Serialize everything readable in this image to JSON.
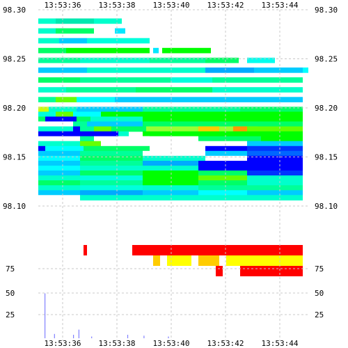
{
  "chart_data": [
    {
      "type": "heatmap",
      "title": "",
      "xlabel": "",
      "ylabel": "",
      "x_ticks": [
        "13:53:36",
        "13:53:38",
        "13:53:40",
        "13:53:42",
        "13:53:44"
      ],
      "y_ticks": [
        "98.30",
        "98.25",
        "98.20",
        "98.15",
        "98.10"
      ],
      "y_tick_values": [
        98.3,
        98.25,
        98.2,
        98.15,
        98.1
      ],
      "ylim": [
        98.0725,
        98.3
      ],
      "grid": true,
      "color_scale": [
        "#0000ff",
        "#00ccff",
        "#00ff99",
        "#00ff00",
        "#ffff00",
        "#ff0000"
      ],
      "note_color_meaning": "depth heat: blue = low size, red = high size",
      "rows": [
        {
          "price": 98.29,
          "cells": [
            [
              0,
              25,
              "#00ffcc"
            ],
            [
              25,
              55,
              "#00e8b0"
            ],
            [
              80,
              40,
              "#00ffcc"
            ]
          ]
        },
        {
          "price": 98.28,
          "cells": [
            [
              0,
              25,
              "#00ffcc"
            ],
            [
              25,
              55,
              "#00ff66"
            ],
            [
              110,
              15,
              "#00e8ff"
            ]
          ]
        },
        {
          "price": 98.27,
          "cells": [
            [
              0,
              30,
              "#00ffcc"
            ],
            [
              30,
              40,
              "#00ccff"
            ],
            [
              70,
              90,
              "#00ffdd"
            ]
          ]
        },
        {
          "price": 98.26,
          "cells": [
            [
              0,
              40,
              "#00ff66"
            ],
            [
              40,
              120,
              "#00ff00"
            ],
            [
              165,
              8,
              "#00e8ff"
            ],
            [
              178,
              70,
              "#00ff00"
            ]
          ]
        },
        {
          "price": 98.25,
          "cells": [
            [
              0,
              60,
              "#00ff99"
            ],
            [
              60,
              100,
              "#00ffcc"
            ],
            [
              160,
              80,
              "#00ff99"
            ],
            [
              240,
              48,
              "#00ff66"
            ],
            [
              300,
              40,
              "#00ffee"
            ]
          ]
        },
        {
          "price": 98.24,
          "cells": [
            [
              0,
              70,
              "#00ccff"
            ],
            [
              70,
              170,
              "#00ffcc"
            ],
            [
              240,
              70,
              "#00aaff"
            ],
            [
              310,
              70,
              "#00ccff"
            ],
            [
              380,
              8,
              "#00ffff"
            ]
          ]
        },
        {
          "price": 98.23,
          "cells": [
            [
              0,
              60,
              "#00ff66"
            ],
            [
              60,
              130,
              "#00ff99"
            ],
            [
              190,
              60,
              "#00ffdd"
            ],
            [
              250,
              130,
              "#00ff99"
            ]
          ]
        },
        {
          "price": 98.22,
          "cells": [
            [
              0,
              40,
              "#00ffcc"
            ],
            [
              40,
              100,
              "#00ff99"
            ],
            [
              140,
              110,
              "#00ff66"
            ],
            [
              250,
              130,
              "#00ffcc"
            ]
          ]
        },
        {
          "price": 98.21,
          "cells": [
            [
              0,
              25,
              "#00ff99"
            ],
            [
              25,
              30,
              "#66ff00"
            ],
            [
              55,
              55,
              "#00ffff"
            ],
            [
              110,
              80,
              "#00ccff"
            ],
            [
              190,
              190,
              "#00ccff"
            ]
          ]
        },
        {
          "price": 98.2,
          "cells": [
            [
              0,
              15,
              "#ccff00"
            ],
            [
              15,
              40,
              "#00ffcc"
            ],
            [
              55,
              95,
              "#00ccff"
            ],
            [
              150,
              140,
              "#00ff99"
            ],
            [
              290,
              90,
              "#00ff66"
            ]
          ]
        },
        {
          "price": 98.195,
          "cells": [
            [
              0,
              25,
              "#00ffdd"
            ],
            [
              25,
              25,
              "#66ff00"
            ],
            [
              50,
              40,
              "#00ffff"
            ],
            [
              90,
              60,
              "#00ff00"
            ],
            [
              150,
              230,
              "#00ff00"
            ]
          ]
        },
        {
          "price": 98.19,
          "cells": [
            [
              0,
              10,
              "#00ff66"
            ],
            [
              10,
              45,
              "#0000ff"
            ],
            [
              55,
              20,
              "#00ff66"
            ],
            [
              75,
              75,
              "#00ffcc"
            ],
            [
              150,
              230,
              "#00ff00"
            ]
          ]
        },
        {
          "price": 98.185,
          "cells": [
            [
              0,
              50,
              "#ffffff"
            ],
            [
              50,
              20,
              "#00ff99"
            ],
            [
              70,
              80,
              "#00ccff"
            ],
            [
              150,
              230,
              "#00ff66"
            ]
          ]
        },
        {
          "price": 98.18,
          "cells": [
            [
              0,
              50,
              "#00ffcc"
            ],
            [
              50,
              10,
              "#0000ff"
            ],
            [
              60,
              20,
              "#00ff99"
            ],
            [
              80,
              25,
              "#66ff00"
            ],
            [
              105,
              50,
              "#00ff66"
            ],
            [
              155,
              160,
              "#99ff33"
            ],
            [
              230,
              30,
              "#ffcc00"
            ],
            [
              280,
              20,
              "#ff9900"
            ],
            [
              300,
              80,
              "#66ff00"
            ]
          ]
        },
        {
          "price": 98.175,
          "cells": [
            [
              0,
              50,
              "#0000ff"
            ],
            [
              50,
              20,
              "#0000ff"
            ],
            [
              70,
              45,
              "#0000ff"
            ],
            [
              115,
              15,
              "#00ffcc"
            ],
            [
              150,
              230,
              "#00ff00"
            ]
          ]
        },
        {
          "price": 98.17,
          "cells": [
            [
              0,
              60,
              "#ffffff"
            ],
            [
              60,
              20,
              "#00ff99"
            ],
            [
              80,
              80,
              "#ffffff"
            ],
            [
              150,
              80,
              "#ffffff"
            ],
            [
              230,
              90,
              "#00ff66"
            ],
            [
              320,
              60,
              "#00ff00"
            ]
          ]
        },
        {
          "price": 98.165,
          "cells": [
            [
              0,
              60,
              "#00ffcc"
            ],
            [
              60,
              30,
              "#66ff00"
            ],
            [
              90,
              70,
              "#ffffff"
            ],
            [
              230,
              70,
              "#ffffff"
            ],
            [
              300,
              80,
              "#00ccff"
            ]
          ]
        },
        {
          "price": 98.16,
          "cells": [
            [
              0,
              10,
              "#0000ff"
            ],
            [
              10,
              55,
              "#00ffff"
            ],
            [
              65,
              95,
              "#00ff66"
            ],
            [
              160,
              70,
              "#ffffff"
            ],
            [
              240,
              60,
              "#0000ff"
            ],
            [
              300,
              80,
              "#0033ff"
            ]
          ]
        },
        {
          "price": 98.155,
          "cells": [
            [
              0,
              60,
              "#00ccff"
            ],
            [
              60,
              90,
              "#00ff99"
            ],
            [
              150,
              90,
              "#ffffff"
            ],
            [
              240,
              60,
              "#00ccff"
            ],
            [
              300,
              80,
              "#0066ff"
            ]
          ]
        },
        {
          "price": 98.15,
          "cells": [
            [
              0,
              60,
              "#00ffff"
            ],
            [
              60,
              90,
              "#00ff66"
            ],
            [
              150,
              90,
              "#00ffcc"
            ],
            [
              240,
              60,
              "#ffffff"
            ],
            [
              300,
              80,
              "#0000ff"
            ]
          ]
        },
        {
          "price": 98.145,
          "cells": [
            [
              0,
              60,
              "#00ccff"
            ],
            [
              60,
              90,
              "#00ff99"
            ],
            [
              150,
              80,
              "#00aaff"
            ],
            [
              230,
              70,
              "#0000ff"
            ],
            [
              300,
              80,
              "#0000ff"
            ]
          ]
        },
        {
          "price": 98.14,
          "cells": [
            [
              0,
              60,
              "#00ffff"
            ],
            [
              60,
              100,
              "#00ffcc"
            ],
            [
              160,
              70,
              "#00ffcc"
            ],
            [
              230,
              150,
              "#0000ff"
            ]
          ]
        },
        {
          "price": 98.135,
          "cells": [
            [
              0,
              60,
              "#00ccff"
            ],
            [
              60,
              90,
              "#00ff66"
            ],
            [
              150,
              80,
              "#00ff00"
            ],
            [
              230,
              70,
              "#00ff66"
            ],
            [
              300,
              80,
              "#0033ff"
            ]
          ]
        },
        {
          "price": 98.13,
          "cells": [
            [
              0,
              60,
              "#00ffcc"
            ],
            [
              60,
              90,
              "#00ffdd"
            ],
            [
              150,
              80,
              "#00ff00"
            ],
            [
              230,
              70,
              "#66ff00"
            ],
            [
              300,
              80,
              "#00ffcc"
            ]
          ]
        },
        {
          "price": 98.125,
          "cells": [
            [
              0,
              60,
              "#00ff66"
            ],
            [
              60,
              90,
              "#00ff99"
            ],
            [
              150,
              80,
              "#00ff00"
            ],
            [
              230,
              70,
              "#00ff66"
            ],
            [
              300,
              80,
              "#00ffcc"
            ]
          ]
        },
        {
          "price": 98.12,
          "cells": [
            [
              0,
              60,
              "#00ffcc"
            ],
            [
              60,
              90,
              "#00ffdd"
            ],
            [
              150,
              80,
              "#00ffcc"
            ],
            [
              230,
              70,
              "#00ff99"
            ],
            [
              300,
              80,
              "#00ff99"
            ]
          ]
        },
        {
          "price": 98.115,
          "cells": [
            [
              0,
              60,
              "#00ccff"
            ],
            [
              60,
              90,
              "#00aaff"
            ],
            [
              150,
              80,
              "#00ccff"
            ],
            [
              230,
              70,
              "#00ffff"
            ],
            [
              300,
              80,
              "#00ccff"
            ]
          ]
        },
        {
          "price": 98.11,
          "cells": [
            [
              0,
              60,
              "#ffffff"
            ],
            [
              60,
              320,
              "#00ffcc"
            ]
          ]
        }
      ],
      "bid_heat": [
        {
          "row": 1,
          "cells": [
            [
              125,
              255,
              "#ff0000"
            ]
          ]
        },
        {
          "row": 2,
          "cells": [
            [
              155,
              20,
              "#ffcc00"
            ],
            [
              175,
              45,
              "#ffff00"
            ],
            [
              220,
              40,
              "#ffcc00"
            ],
            [
              260,
              120,
              "#ffff00"
            ]
          ]
        },
        {
          "row": 3,
          "cells": [
            [
              245,
              20,
              "#ff0000"
            ],
            [
              280,
              100,
              "#ff0000"
            ]
          ]
        }
      ],
      "y2_ticks": [
        "75",
        "50",
        "25"
      ],
      "y2_tick_values": [
        75,
        50,
        25
      ],
      "y2lim": [
        0,
        88
      ],
      "volume_bars": [
        {
          "t": 0.0,
          "v": 52
        },
        {
          "t": 0.35,
          "v": 5
        },
        {
          "t": 1.05,
          "v": 4
        },
        {
          "t": 1.25,
          "v": 10
        },
        {
          "t": 1.72,
          "v": 2
        },
        {
          "t": 3.05,
          "v": 4
        },
        {
          "t": 3.65,
          "v": 3
        },
        {
          "t": 4.55,
          "v": 2
        }
      ],
      "single_ticks": [
        {
          "t": 0.82,
          "row": 1,
          "color": "#ff0000"
        },
        {
          "t": 0.0,
          "row_price": 98.1035,
          "color": "#ffffff"
        }
      ]
    }
  ]
}
